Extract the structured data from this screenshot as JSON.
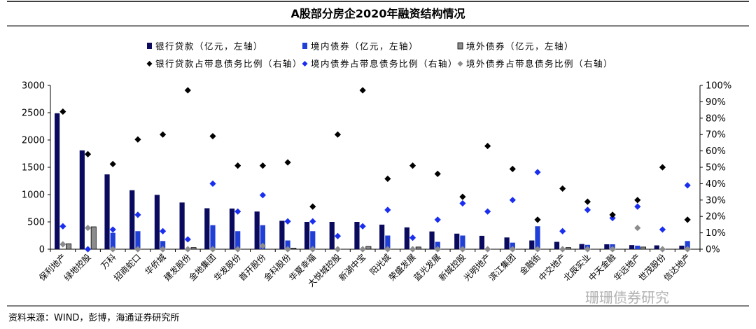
{
  "title": "A股部分房企2020年融资结构情况",
  "source": "资料来源：WIND，彭博，海通证券研究所",
  "watermark": "珊珊债券研究",
  "colors": {
    "bank": "#0a0a5e",
    "domestic": "#1f3fd6",
    "overseas": "#8c8c8c",
    "bank_pt": "#000000",
    "domestic_pt": "#1a2ef0",
    "overseas_pt": "#8c8c8c"
  },
  "chart_data": {
    "type": "bar",
    "title": "A股部分房企2020年融资结构情况",
    "categories": [
      "保利地产",
      "绿地控股",
      "万科",
      "招商蛇口",
      "华侨城",
      "建发股份",
      "金地集团",
      "华发股份",
      "首开股份",
      "金科股份",
      "华夏幸福",
      "大悦城控股",
      "新湖中宝",
      "阳光城",
      "荣盛发展",
      "蓝光发展",
      "新城控股",
      "光明地产",
      "滨江集团",
      "金融街",
      "中交地产",
      "北辰实业",
      "中天金融",
      "华远地产",
      "世茂股份",
      "信达地产"
    ],
    "left_axis": {
      "min": 0,
      "max": 3000,
      "ticks": [
        "0",
        "500",
        "1000",
        "1500",
        "2000",
        "2500",
        "3000"
      ]
    },
    "right_axis": {
      "min": 0,
      "max": 100,
      "ticks": [
        "0%",
        "10%",
        "20%",
        "30%",
        "40%",
        "50%",
        "60%",
        "70%",
        "80%",
        "90%",
        "100%"
      ]
    },
    "legend_placement": "top",
    "series": [
      {
        "name": "银行贷款（亿元，左轴）",
        "axis": "left",
        "kind": "bar",
        "values": [
          2490,
          1810,
          1370,
          1080,
          995,
          855,
          750,
          745,
          690,
          520,
          500,
          500,
          500,
          450,
          400,
          325,
          285,
          245,
          215,
          160,
          135,
          95,
          90,
          75,
          70,
          65
        ]
      },
      {
        "name": "境内债券（亿元，左轴）",
        "axis": "left",
        "kind": "bar",
        "values": [
          0,
          0,
          300,
          330,
          150,
          0,
          440,
          330,
          440,
          160,
          330,
          0,
          0,
          250,
          0,
          135,
          250,
          0,
          120,
          420,
          0,
          80,
          90,
          65,
          0,
          150
        ]
      },
      {
        "name": "境外债券（亿元，左轴）",
        "axis": "left",
        "kind": "bar",
        "values": [
          100,
          410,
          0,
          0,
          0,
          30,
          0,
          0,
          0,
          20,
          0,
          0,
          50,
          0,
          40,
          0,
          0,
          0,
          0,
          0,
          30,
          0,
          0,
          40,
          0,
          0
        ]
      },
      {
        "name": "银行贷款占带息债务比例（右轴）",
        "axis": "right",
        "kind": "scatter",
        "values": [
          84,
          58,
          52,
          67,
          70,
          97,
          69,
          51,
          51,
          53,
          26,
          70,
          97,
          43,
          51,
          46,
          32,
          63,
          49,
          18,
          37,
          29,
          21,
          30,
          50,
          18
        ]
      },
      {
        "name": "境内债券占带息债务比例（右轴）",
        "axis": "right",
        "kind": "scatter",
        "values": [
          14,
          0,
          12,
          21,
          11,
          6,
          40,
          23,
          33,
          17,
          17,
          8,
          14,
          24,
          7,
          18,
          28,
          23,
          30,
          47,
          11,
          24,
          19,
          26,
          12,
          39
        ]
      },
      {
        "name": "境外债券占带息债务比例（右轴）",
        "axis": "right",
        "kind": "scatter",
        "values": [
          3,
          13,
          0,
          0,
          0,
          0,
          0,
          0,
          2,
          0,
          0,
          0,
          0,
          0,
          0,
          0,
          0,
          0,
          0,
          0,
          0,
          0,
          0,
          13,
          0,
          0
        ]
      }
    ]
  }
}
